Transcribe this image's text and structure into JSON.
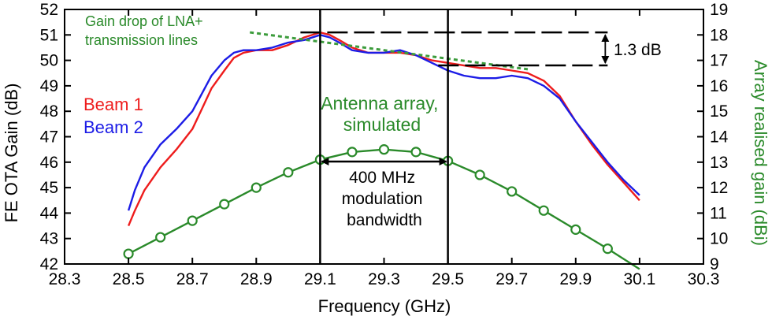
{
  "chart_data": {
    "type": "line",
    "xlabel": "Frequency (GHz)",
    "ylabel_left": "FE OTA Gain (dB)",
    "ylabel_right": "Array realised gain (dBi)",
    "xlim": [
      28.3,
      30.3
    ],
    "ylim_left": [
      42,
      52
    ],
    "ylim_right": [
      9,
      19
    ],
    "x_ticks": [
      "28.3",
      "28.5",
      "28.7",
      "28.9",
      "29.1",
      "29.3",
      "29.5",
      "29.7",
      "29.9",
      "30.1",
      "30.3"
    ],
    "y_ticks_left": [
      "42",
      "43",
      "44",
      "45",
      "46",
      "47",
      "48",
      "49",
      "50",
      "51",
      "52"
    ],
    "y_ticks_right": [
      "9",
      "10",
      "11",
      "12",
      "13",
      "14",
      "15",
      "16",
      "17",
      "18",
      "19"
    ],
    "grid": false,
    "colors": {
      "beam1": "#ee1c1c",
      "beam2": "#1c1ce6",
      "simulated": "#2a8a2a",
      "trend": "#3c9c3c"
    },
    "series": [
      {
        "name": "Beam 1",
        "axis": "left",
        "x": [
          28.5,
          28.52,
          28.55,
          28.6,
          28.65,
          28.7,
          28.73,
          28.76,
          28.8,
          28.83,
          28.86,
          28.9,
          28.95,
          29.0,
          29.05,
          29.1,
          29.13,
          29.16,
          29.2,
          29.25,
          29.3,
          29.35,
          29.4,
          29.45,
          29.5,
          29.55,
          29.6,
          29.65,
          29.7,
          29.75,
          29.8,
          29.85,
          29.9,
          29.95,
          30.0,
          30.05,
          30.1
        ],
        "values": [
          43.5,
          44.1,
          44.9,
          45.8,
          46.5,
          47.3,
          48.1,
          48.9,
          49.6,
          50.1,
          50.3,
          50.4,
          50.4,
          50.6,
          50.9,
          51.1,
          51.0,
          50.8,
          50.5,
          50.3,
          50.3,
          50.3,
          50.2,
          50.0,
          49.9,
          49.8,
          49.7,
          49.7,
          49.6,
          49.5,
          49.2,
          48.6,
          47.6,
          46.7,
          45.9,
          45.2,
          44.5
        ]
      },
      {
        "name": "Beam 2",
        "axis": "left",
        "x": [
          28.5,
          28.52,
          28.55,
          28.6,
          28.65,
          28.7,
          28.73,
          28.76,
          28.8,
          28.83,
          28.86,
          28.9,
          28.95,
          29.0,
          29.05,
          29.1,
          29.13,
          29.16,
          29.2,
          29.25,
          29.3,
          29.35,
          29.4,
          29.45,
          29.5,
          29.55,
          29.6,
          29.65,
          29.7,
          29.75,
          29.8,
          29.85,
          29.9,
          29.95,
          30.0,
          30.05,
          30.1
        ],
        "values": [
          44.1,
          44.9,
          45.8,
          46.7,
          47.3,
          48.0,
          48.7,
          49.4,
          50.0,
          50.3,
          50.4,
          50.4,
          50.5,
          50.7,
          50.8,
          51.0,
          50.9,
          50.7,
          50.4,
          50.3,
          50.3,
          50.4,
          50.2,
          49.9,
          49.6,
          49.4,
          49.3,
          49.3,
          49.4,
          49.3,
          49.0,
          48.5,
          47.6,
          46.8,
          46.0,
          45.3,
          44.7
        ]
      },
      {
        "name": "Antenna array, simulated",
        "axis": "right",
        "x": [
          28.5,
          28.6,
          28.7,
          28.8,
          28.9,
          29.0,
          29.1,
          29.2,
          29.3,
          29.4,
          29.5,
          29.6,
          29.7,
          29.8,
          29.9,
          30.0,
          30.1
        ],
        "values": [
          9.4,
          10.05,
          10.7,
          11.35,
          12.0,
          12.6,
          13.1,
          13.4,
          13.5,
          13.4,
          13.05,
          12.5,
          11.85,
          11.1,
          10.35,
          9.6,
          8.8
        ],
        "markers_at": [
          28.5,
          28.6,
          28.7,
          28.8,
          28.9,
          29.0,
          29.1,
          29.2,
          29.3,
          29.4,
          29.5,
          29.6,
          29.7,
          29.8,
          29.9,
          30.0
        ]
      }
    ],
    "trend_line": {
      "axis": "left",
      "x": [
        28.88,
        29.75
      ],
      "values": [
        51.1,
        49.65
      ]
    },
    "vertical_lines": [
      29.1,
      29.5
    ],
    "gain_bracket": {
      "upper": 51.1,
      "lower": 49.8,
      "x_upper": [
        29.1,
        30.0
      ],
      "x_lower": [
        29.45,
        30.0
      ]
    },
    "bandwidth_span": [
      29.1,
      29.5
    ],
    "annotations": {
      "trend_label_line1": "Gain drop of LNA+",
      "trend_label_line2": "transmission lines",
      "beam1_label": "Beam 1",
      "beam2_label": "Beam 2",
      "sim_label_line1": "Antenna array,",
      "sim_label_line2": "simulated",
      "bracket_label": "1.3 dB",
      "bw_line1": "400 MHz",
      "bw_line2": "modulation",
      "bw_line3": "bandwidth"
    }
  }
}
